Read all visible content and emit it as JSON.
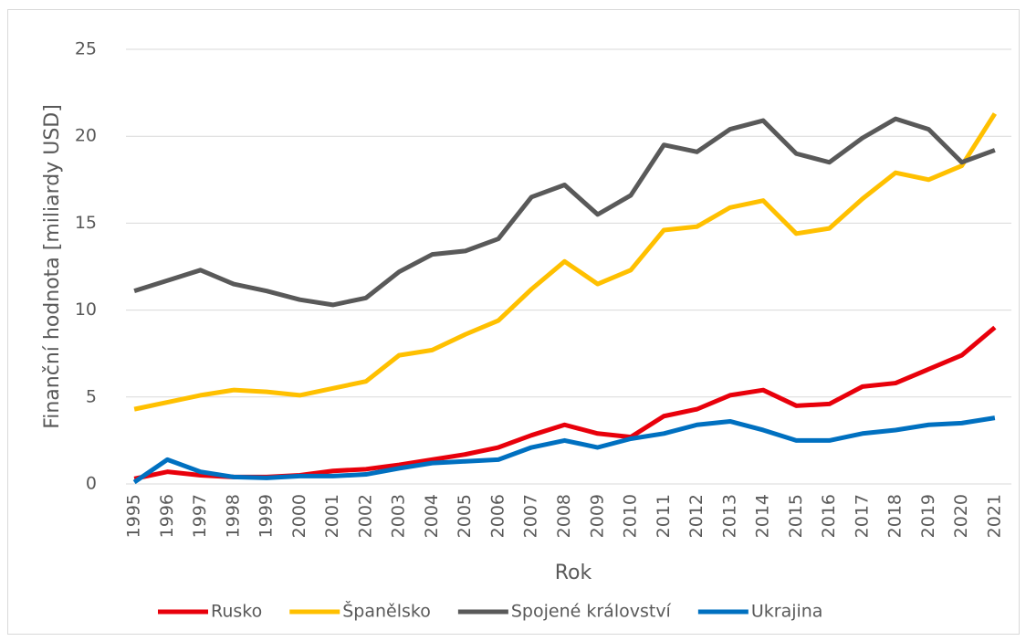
{
  "chart_data": {
    "type": "line",
    "xlabel": "Rok",
    "ylabel": "Finanční hodnota [miliardy USD]",
    "categories": [
      "1995",
      "1996",
      "1997",
      "1998",
      "1999",
      "2000",
      "2001",
      "2002",
      "2003",
      "2004",
      "2005",
      "2006",
      "2007",
      "2008",
      "2009",
      "2010",
      "2011",
      "2012",
      "2013",
      "2014",
      "2015",
      "2016",
      "2017",
      "2018",
      "2019",
      "2020",
      "2021"
    ],
    "series": [
      {
        "name": "Rusko",
        "color": "#e8000b",
        "values": [
          0.3,
          0.7,
          0.5,
          0.4,
          0.4,
          0.5,
          0.75,
          0.85,
          1.1,
          1.4,
          1.7,
          2.1,
          2.8,
          3.4,
          2.9,
          2.7,
          3.9,
          4.3,
          5.1,
          5.4,
          4.5,
          4.6,
          5.6,
          5.8,
          6.6,
          7.4,
          9.0
        ]
      },
      {
        "name": "Španělsko",
        "color": "#ffc000",
        "values": [
          4.3,
          4.7,
          5.1,
          5.4,
          5.3,
          5.1,
          5.5,
          5.9,
          7.4,
          7.7,
          8.6,
          9.4,
          11.2,
          12.8,
          11.5,
          12.3,
          14.6,
          14.8,
          15.9,
          16.3,
          14.4,
          14.7,
          16.4,
          17.9,
          17.5,
          18.3,
          21.3
        ]
      },
      {
        "name": "Spojené království",
        "color": "#595959",
        "values": [
          11.1,
          11.7,
          12.3,
          11.5,
          11.1,
          10.6,
          10.3,
          10.7,
          12.2,
          13.2,
          13.4,
          14.1,
          16.5,
          17.2,
          15.5,
          16.6,
          19.5,
          19.1,
          20.4,
          20.9,
          19.0,
          18.5,
          19.9,
          21.0,
          20.4,
          18.5,
          19.2
        ]
      },
      {
        "name": "Ukrajina",
        "color": "#0070c0",
        "values": [
          0.1,
          1.4,
          0.7,
          0.4,
          0.35,
          0.45,
          0.45,
          0.55,
          0.9,
          1.2,
          1.3,
          1.4,
          2.1,
          2.5,
          2.1,
          2.6,
          2.9,
          3.4,
          3.6,
          3.1,
          2.5,
          2.5,
          2.9,
          3.1,
          3.4,
          3.5,
          3.8
        ]
      }
    ],
    "ylim": [
      0,
      25
    ],
    "yticks": [
      0,
      5,
      10,
      15,
      20,
      25
    ],
    "grid": true,
    "legend": "bottom"
  }
}
